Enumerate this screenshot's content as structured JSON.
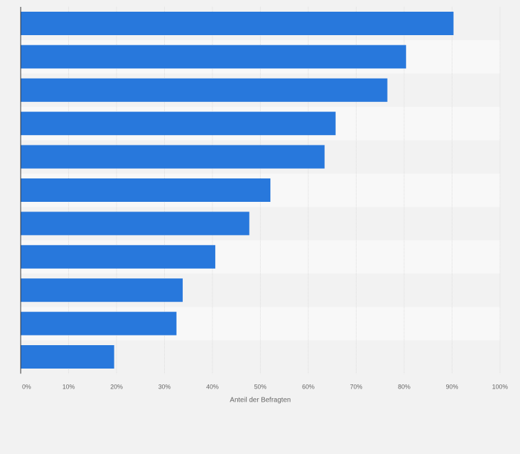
{
  "chart_data": {
    "type": "bar",
    "orientation": "horizontal",
    "categories": [
      "",
      "",
      "",
      "",
      "",
      "",
      "",
      "",
      "",
      "",
      ""
    ],
    "values": [
      90.3,
      80.4,
      76.5,
      65.7,
      63.4,
      52.1,
      47.7,
      40.6,
      33.8,
      32.5,
      19.5
    ],
    "title": "",
    "xlabel": "Anteil der Befragten",
    "ylabel": "",
    "xlim": [
      0,
      100
    ],
    "xticks": [
      "0%",
      "10%",
      "20%",
      "30%",
      "40%",
      "50%",
      "60%",
      "70%",
      "80%",
      "90%",
      "100%"
    ],
    "grid": true,
    "legend": "none"
  },
  "colors": {
    "bar": "#2878dc",
    "band_dark": "#f2f2f2",
    "band_light": "#f8f8f8",
    "grid": "#dcdcdc",
    "axis": "#333333"
  }
}
